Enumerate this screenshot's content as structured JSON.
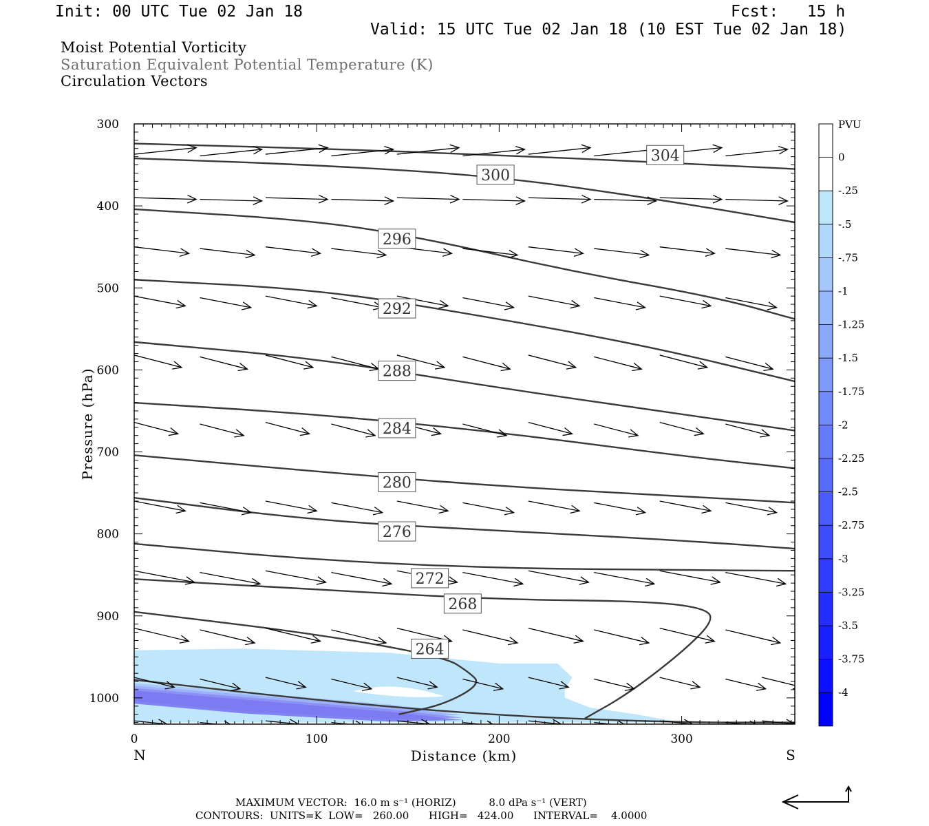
{
  "header": {
    "init": "Init: 00 UTC Tue 02 Jan 18",
    "fcst": "Fcst:   15 h",
    "valid": "Valid: 15 UTC Tue 02 Jan 18 (10 EST Tue 02 Jan 18)",
    "field1": "Moist Potential Vorticity",
    "field2": "Saturation Equivalent Potential Temperature (K)",
    "field3": "Circulation Vectors"
  },
  "footer": {
    "max_vector": "MAXIMUM VECTOR:  16.0 m s⁻¹ (HORIZ)          8.0 dPa s⁻¹ (VERT)",
    "contours": "CONTOURS:  UNITS=K  LOW=   260.00      HIGH=   424.00      INTERVAL=    4.0000"
  },
  "colors": {
    "contour": "#3a3a3a",
    "mpv_shading": [
      "#bfe6fb",
      "#a9c7fa",
      "#9aaef8",
      "#8b8ff4",
      "#7b78f2"
    ],
    "colorbar_top": "#ffffff",
    "colorbar_bottom": "#0000ff"
  },
  "chart_data": {
    "type": "cross-section (contour + vectors + filled shading)",
    "xlabel": "Distance (km)",
    "ylabel": "Pressure (hPa)",
    "x_ticks": [
      "0",
      "100",
      "200",
      "300"
    ],
    "x_end_labels": {
      "left": "N",
      "right": "S"
    },
    "xlim": [
      0,
      362
    ],
    "y_ticks": [
      "300",
      "400",
      "500",
      "600",
      "700",
      "800",
      "900",
      "1000"
    ],
    "ylim": [
      300,
      1032
    ],
    "y_reversed": true,
    "theta_es_contours_K": [
      {
        "value": 304,
        "label": "304",
        "points": [
          [
            0,
            324
          ],
          [
            100,
            330
          ],
          [
            200,
            338
          ],
          [
            280,
            346
          ],
          [
            362,
            355
          ]
        ]
      },
      {
        "value": 300,
        "label": "300",
        "points": [
          [
            0,
            342
          ],
          [
            100,
            350
          ],
          [
            200,
            364
          ],
          [
            290,
            393
          ],
          [
            362,
            420
          ]
        ]
      },
      {
        "value": 296,
        "label": "296",
        "points": [
          [
            0,
            404
          ],
          [
            100,
            418
          ],
          [
            160,
            440
          ],
          [
            240,
            480
          ],
          [
            320,
            512
          ],
          [
            362,
            538
          ]
        ]
      },
      {
        "value": 292,
        "label": "292",
        "points": [
          [
            0,
            490
          ],
          [
            100,
            502
          ],
          [
            180,
            530
          ],
          [
            280,
            570
          ],
          [
            362,
            614
          ]
        ]
      },
      {
        "value": 288,
        "label": "288",
        "points": [
          [
            0,
            566
          ],
          [
            100,
            586
          ],
          [
            200,
            622
          ],
          [
            300,
            654
          ],
          [
            362,
            674
          ]
        ]
      },
      {
        "value": 284,
        "label": "284",
        "points": [
          [
            0,
            640
          ],
          [
            100,
            654
          ],
          [
            200,
            676
          ],
          [
            300,
            705
          ],
          [
            362,
            720
          ]
        ]
      },
      {
        "value": 280,
        "label": "280",
        "points": [
          [
            0,
            704
          ],
          [
            100,
            724
          ],
          [
            200,
            742
          ],
          [
            300,
            754
          ],
          [
            362,
            762
          ]
        ]
      },
      {
        "value": 276,
        "label": "276",
        "points": [
          [
            0,
            756
          ],
          [
            100,
            784
          ],
          [
            200,
            796
          ],
          [
            300,
            808
          ],
          [
            362,
            818
          ]
        ]
      },
      {
        "value": 272,
        "label": "272",
        "points": [
          [
            0,
            812
          ],
          [
            100,
            832
          ],
          [
            200,
            842
          ],
          [
            300,
            844
          ],
          [
            362,
            845
          ]
        ]
      },
      {
        "value": 268,
        "label": "268",
        "points": [
          [
            0,
            855
          ],
          [
            100,
            868
          ],
          [
            200,
            880
          ],
          [
            280,
            882
          ],
          [
            312,
            890
          ],
          [
            318,
            905
          ],
          [
            300,
            945
          ],
          [
            270,
            996
          ],
          [
            247,
            1025
          ]
        ]
      },
      {
        "value": 264,
        "label": "264",
        "points": [
          [
            0,
            895
          ],
          [
            100,
            922
          ],
          [
            170,
            950
          ],
          [
            183,
            968
          ],
          [
            190,
            983
          ],
          [
            170,
            1008
          ],
          [
            145,
            1020
          ]
        ]
      },
      {
        "value": 260,
        "label": "",
        "points": [
          [
            0,
            978
          ],
          [
            100,
            1003
          ],
          [
            200,
            1022
          ],
          [
            300,
            1030
          ],
          [
            362,
            1030
          ]
        ]
      }
    ],
    "mpv_colorbar": {
      "unit": "PVU",
      "levels": [
        "0",
        "-.25",
        "-.5",
        "-.75",
        "-1",
        "-1.25",
        "-1.5",
        "-1.75",
        "-2",
        "-2.25",
        "-2.5",
        "-2.75",
        "-3",
        "-3.25",
        "-3.5",
        "-3.75",
        "-4"
      ]
    },
    "mpv_negative_region_PVU": "-0.25 to -1.25 near surface, x 0–290 km, p 940–1032 hPa",
    "circulation_vectors": {
      "x_km": [
        0,
        36,
        72,
        108,
        144,
        180,
        216,
        252,
        288,
        324,
        344
      ],
      "rows": [
        {
          "p": 337,
          "len_km": 34,
          "dp": -8
        },
        {
          "p": 390,
          "len_km": 34,
          "dp": 2
        },
        {
          "p": 450,
          "len_km": 30,
          "dp": 8
        },
        {
          "p": 510,
          "len_km": 28,
          "dp": 12
        },
        {
          "p": 582,
          "len_km": 26,
          "dp": 15
        },
        {
          "p": 664,
          "len_km": 24,
          "dp": 14
        },
        {
          "p": 760,
          "len_km": 28,
          "dp": 12
        },
        {
          "p": 845,
          "len_km": 33,
          "dp": 14
        },
        {
          "p": 915,
          "len_km": 30,
          "dp": 16
        },
        {
          "p": 975,
          "len_km": 22,
          "dp": 12
        },
        {
          "p": 1028,
          "len_km": 18,
          "dp": 4
        }
      ]
    }
  }
}
